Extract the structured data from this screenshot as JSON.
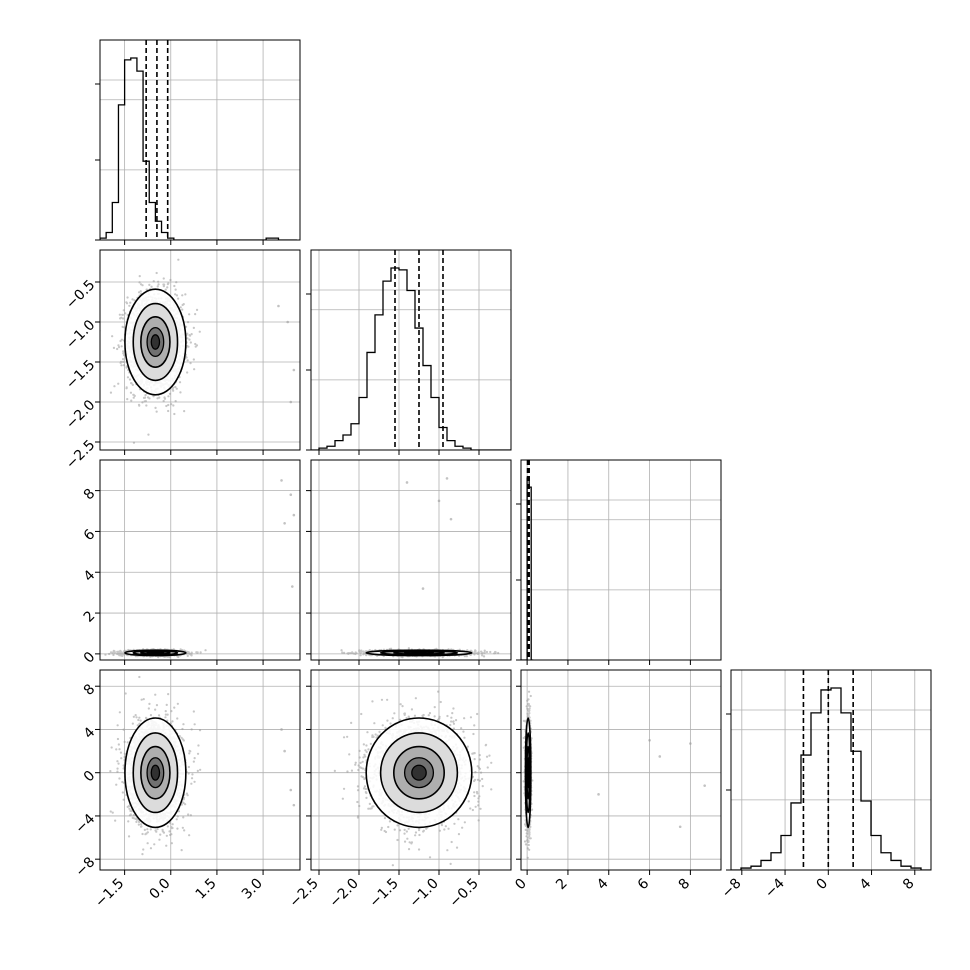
{
  "chart_data": {
    "type": "corner",
    "title": "",
    "parameters": [
      {
        "index": 0,
        "label": "",
        "range": [
          -2.3,
          4.2
        ],
        "ticks": [
          -1.5,
          0.0,
          1.5,
          3.0
        ],
        "tick_labels": [
          "−1.5",
          "0.0",
          "1.5",
          "3.0"
        ],
        "mean": -0.5,
        "sd": 0.5,
        "quantiles": [
          -0.8,
          -0.45,
          -0.1
        ]
      },
      {
        "index": 1,
        "label": "",
        "range": [
          -2.6,
          -0.1
        ],
        "ticks": [
          -2.5,
          -2.0,
          -1.5,
          -1.0,
          -0.5
        ],
        "tick_labels": [
          "−2.5",
          "−2.0",
          "−1.5",
          "−1.0",
          "−0.5"
        ],
        "mean": -1.25,
        "sd": 0.3,
        "quantiles": [
          -1.55,
          -1.25,
          -0.95
        ]
      },
      {
        "index": 2,
        "label": "",
        "range": [
          -0.3,
          9.5
        ],
        "ticks": [
          0,
          2,
          4,
          6,
          8
        ],
        "tick_labels": [
          "0",
          "2",
          "4",
          "6",
          "8"
        ],
        "mean": 0.05,
        "sd": 0.05,
        "quantiles": [
          0.02,
          0.05,
          0.1
        ]
      },
      {
        "index": 3,
        "label": "",
        "range": [
          -9,
          9.5
        ],
        "ticks": [
          -8,
          -4,
          0,
          4,
          8
        ],
        "tick_labels": [
          "−8",
          "−4",
          "0",
          "4",
          "8"
        ],
        "mean": 0.0,
        "sd": 2.3,
        "quantiles": [
          -2.3,
          0.0,
          2.3
        ]
      }
    ],
    "diagonal_histograms": [
      {
        "param": 0,
        "bin_start": -2.3,
        "bin_width": 0.2,
        "counts": [
          1,
          4,
          20,
          72,
          96,
          97,
          90,
          42,
          20,
          10,
          4,
          1,
          0,
          0,
          0,
          0,
          0,
          0,
          0,
          0,
          0,
          0,
          0,
          0,
          0,
          0,
          0,
          1,
          1,
          0,
          0,
          0
        ]
      },
      {
        "param": 1,
        "bin_start": -2.6,
        "bin_width": 0.1,
        "counts": [
          0,
          1,
          2,
          5,
          8,
          14,
          28,
          52,
          72,
          90,
          97,
          96,
          85,
          65,
          45,
          28,
          12,
          5,
          2,
          1,
          0,
          0,
          0,
          0,
          0
        ]
      },
      {
        "param": 2,
        "bin_start": -0.3,
        "bin_width": 0.1,
        "counts": [
          0,
          0,
          0,
          100,
          95,
          0
        ]
      },
      {
        "param": 3,
        "bin_start": -9.0,
        "bin_width": 0.925,
        "counts": [
          0,
          1,
          2,
          5,
          9,
          18,
          35,
          60,
          82,
          94,
          95,
          82,
          62,
          36,
          18,
          9,
          5,
          2,
          1,
          0
        ]
      }
    ],
    "pairs": [
      {
        "x": 0,
        "y": 1,
        "x_mean": -0.5,
        "y_mean": -1.25,
        "x_sd": 0.45,
        "y_sd": 0.3
      },
      {
        "x": 0,
        "y": 2,
        "x_mean": -0.5,
        "y_mean": 0.05,
        "x_sd": 0.45,
        "y_sd": 0.06
      },
      {
        "x": 1,
        "y": 2,
        "x_mean": -1.25,
        "y_mean": 0.05,
        "x_sd": 0.3,
        "y_sd": 0.06
      },
      {
        "x": 0,
        "y": 3,
        "x_mean": -0.5,
        "y_mean": 0.0,
        "x_sd": 0.45,
        "y_sd": 2.3
      },
      {
        "x": 1,
        "y": 3,
        "x_mean": -1.25,
        "y_mean": 0.0,
        "x_sd": 0.3,
        "y_sd": 2.3
      },
      {
        "x": 2,
        "y": 3,
        "x_mean": 0.05,
        "y_mean": 0.0,
        "x_sd": 0.06,
        "y_sd": 2.3
      }
    ],
    "outliers": [
      {
        "x": 0,
        "y": 1,
        "points": [
          [
            3.8,
            -1.0
          ],
          [
            4.0,
            -1.6
          ],
          [
            3.5,
            -0.8
          ],
          [
            3.9,
            -2.0
          ]
        ]
      },
      {
        "x": 0,
        "y": 2,
        "points": [
          [
            3.6,
            8.5
          ],
          [
            3.9,
            7.8
          ],
          [
            4.0,
            6.8
          ],
          [
            3.7,
            6.4
          ],
          [
            3.95,
            3.3
          ]
        ]
      },
      {
        "x": 1,
        "y": 2,
        "points": [
          [
            -1.4,
            8.4
          ],
          [
            -1.0,
            7.5
          ],
          [
            -0.85,
            6.6
          ],
          [
            -1.2,
            3.2
          ],
          [
            -0.9,
            8.6
          ]
        ]
      },
      {
        "x": 0,
        "y": 3,
        "points": [
          [
            3.7,
            2.0
          ],
          [
            3.9,
            -1.6
          ],
          [
            3.6,
            4.0
          ],
          [
            4.0,
            -3.0
          ]
        ]
      },
      {
        "x": 2,
        "y": 3,
        "points": [
          [
            6.5,
            1.5
          ],
          [
            8.0,
            2.7
          ],
          [
            8.7,
            -1.2
          ],
          [
            7.5,
            -5.0
          ],
          [
            3.5,
            -2.0
          ],
          [
            6.0,
            3.0
          ]
        ]
      }
    ],
    "grid": true,
    "colors": {
      "line": "#000000",
      "grid": "#b0b0b0",
      "scatter": "#9a9a9a",
      "density": "#000000"
    }
  }
}
